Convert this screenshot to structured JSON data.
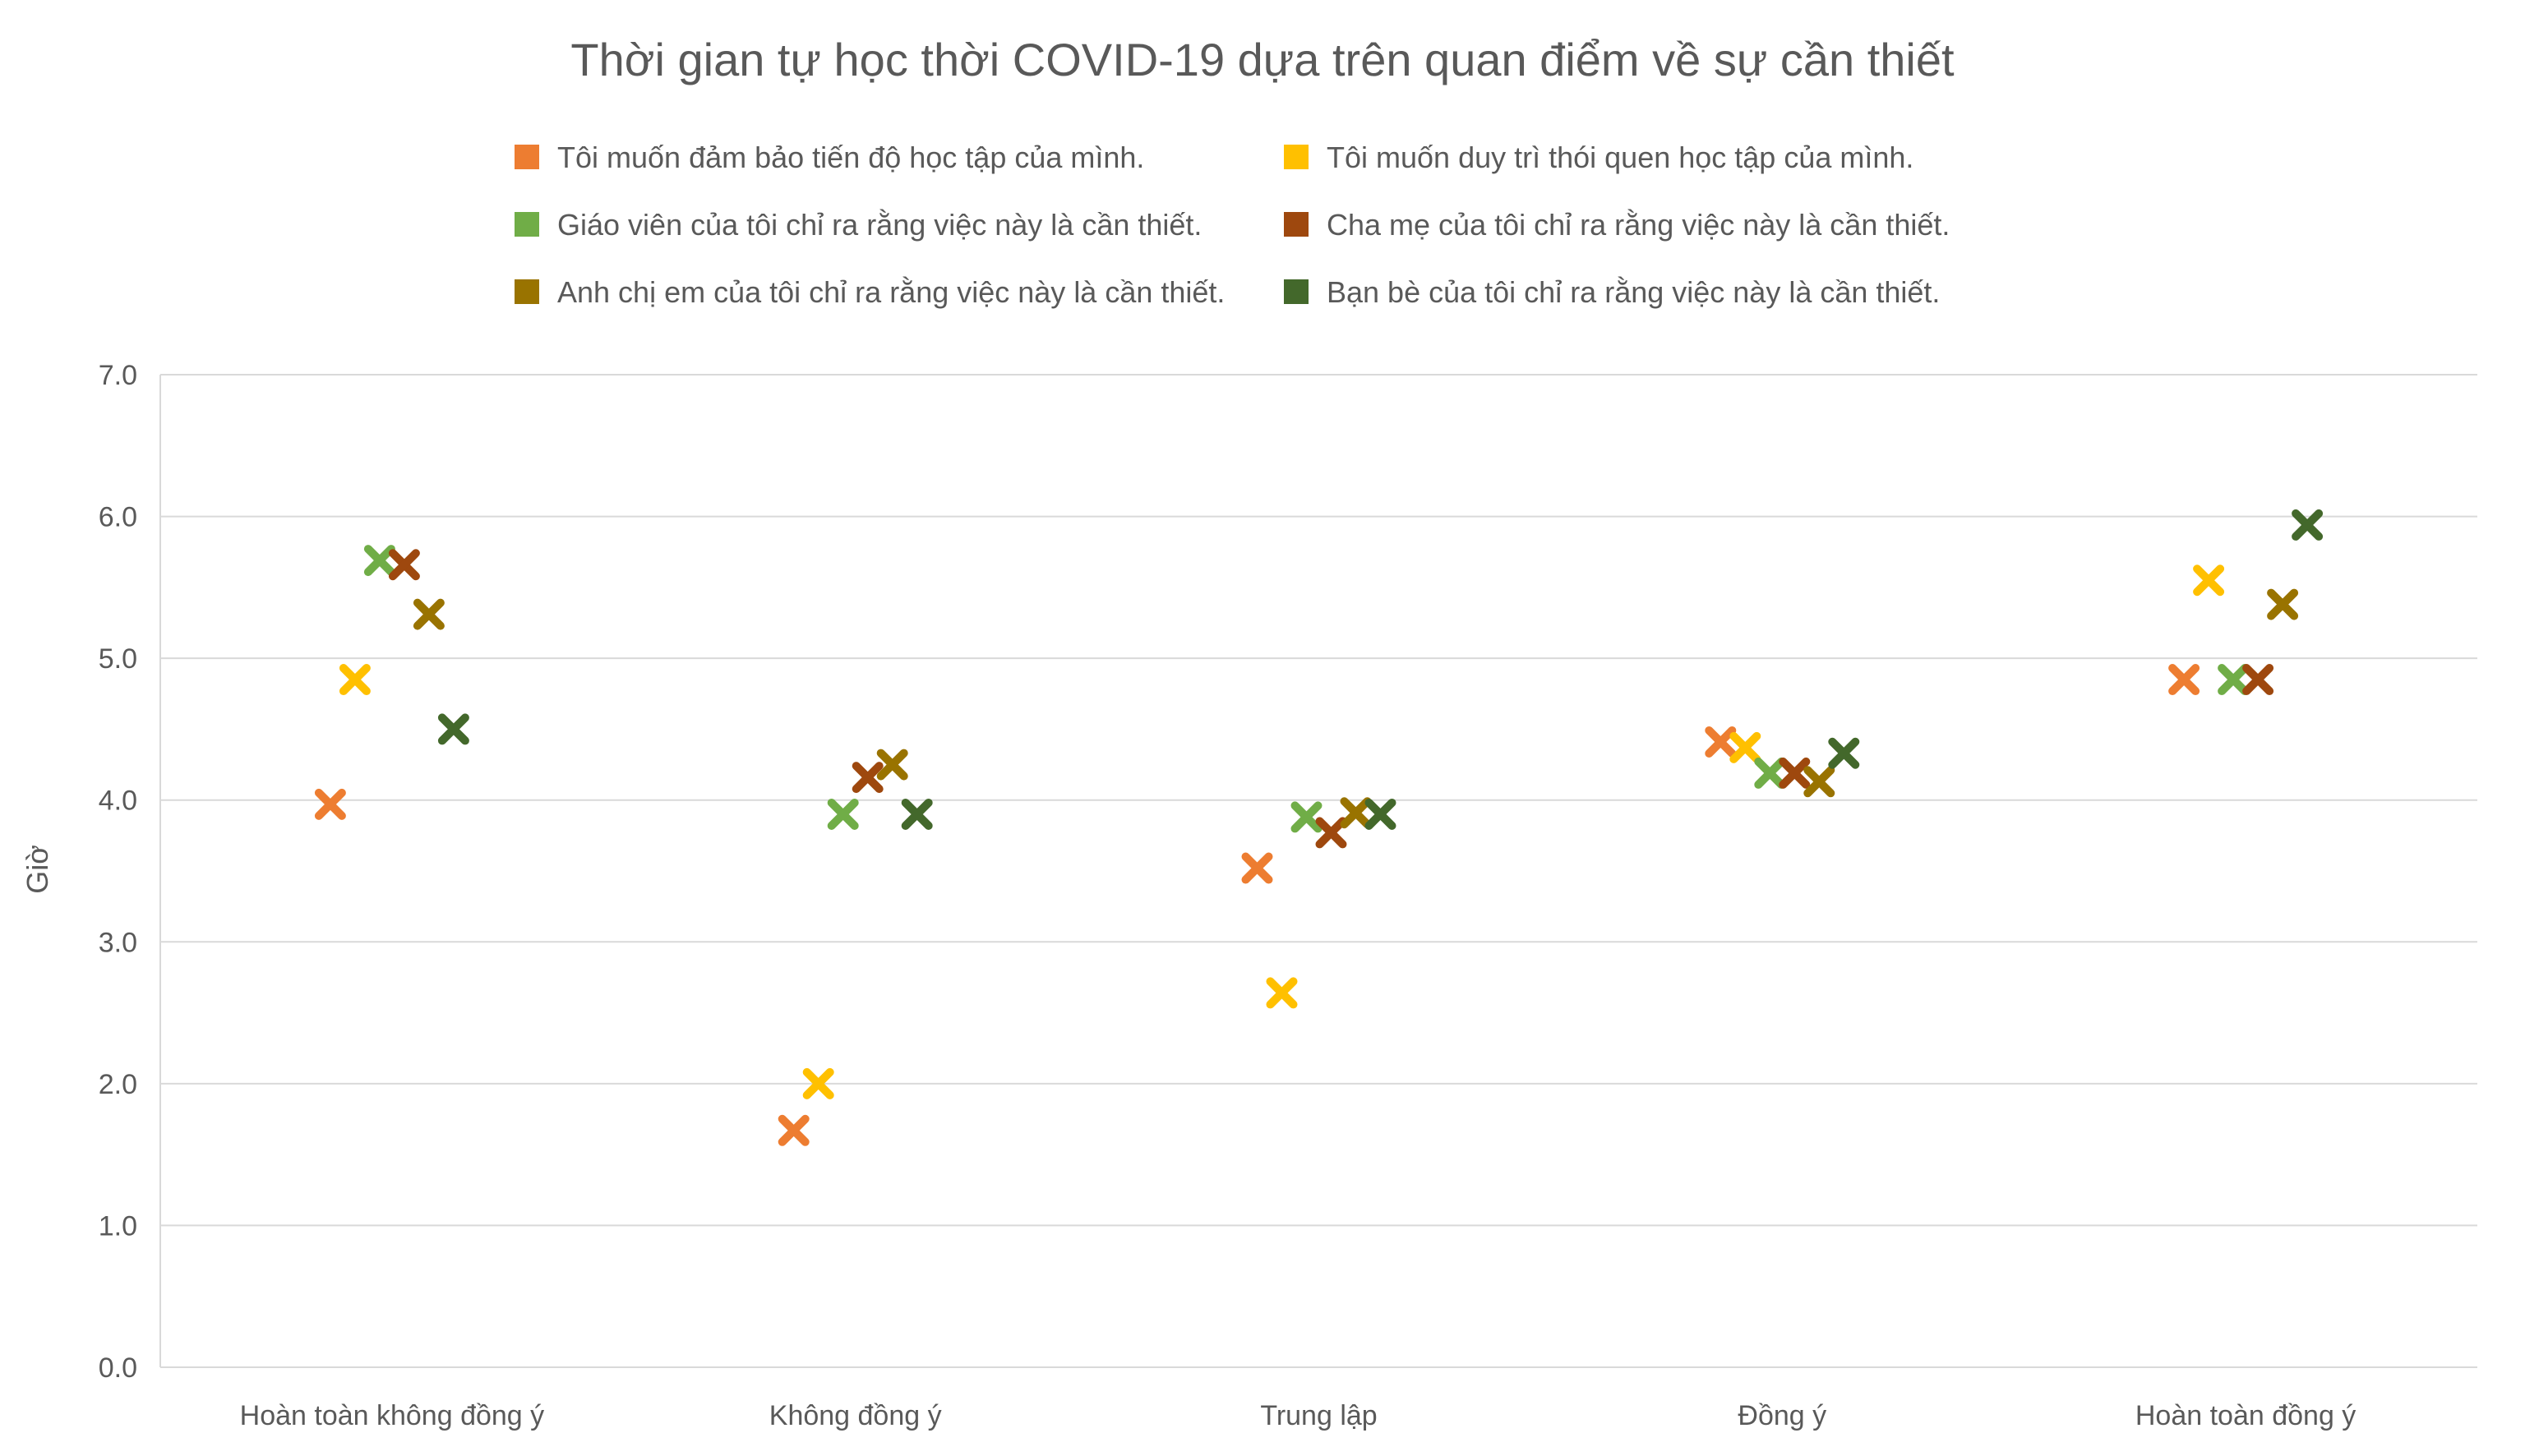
{
  "chart_data": {
    "type": "scatter",
    "title": "Thời gian tự học thời COVID-19 dựa trên quan điểm về sự cần thiết",
    "xlabel": "",
    "ylabel": "Giờ",
    "ylim": [
      0,
      7
    ],
    "yticks": [
      "0.0",
      "1.0",
      "2.0",
      "3.0",
      "4.0",
      "5.0",
      "6.0",
      "7.0"
    ],
    "grid": true,
    "legend_position": "top",
    "marker": "x",
    "categories": [
      "Hoàn toàn không đồng ý",
      "Không đồng ý",
      "Trung lập",
      "Đồng ý",
      "Hoàn toàn đồng ý"
    ],
    "series": [
      {
        "name": "Tôi muốn đảm bảo tiến độ học tập của mình.",
        "color": "#ED7D31",
        "values": [
          3.97,
          1.67,
          3.52,
          4.41,
          4.85
        ]
      },
      {
        "name": "Tôi muốn duy trì thói quen học tập của mình.",
        "color": "#FFC000",
        "values": [
          4.85,
          2.0,
          2.64,
          4.37,
          5.55
        ]
      },
      {
        "name": "Giáo viên của tôi chỉ ra rằng việc này là cần thiết.",
        "color": "#70AD47",
        "values": [
          5.69,
          3.9,
          3.88,
          4.19,
          4.85
        ]
      },
      {
        "name": "Cha mẹ của tôi chỉ ra rằng việc này là cần thiết.",
        "color": "#9E480E",
        "values": [
          5.66,
          4.16,
          3.77,
          4.19,
          4.85
        ]
      },
      {
        "name": "Anh chị em của tôi chỉ ra rằng việc này là cần thiết.",
        "color": "#997300",
        "values": [
          5.31,
          4.25,
          3.91,
          4.13,
          5.38
        ]
      },
      {
        "name": "Bạn bè của tôi chỉ ra rằng việc này là cần thiết.",
        "color": "#43682B",
        "values": [
          4.5,
          3.9,
          3.9,
          4.33,
          5.94
        ]
      }
    ]
  }
}
